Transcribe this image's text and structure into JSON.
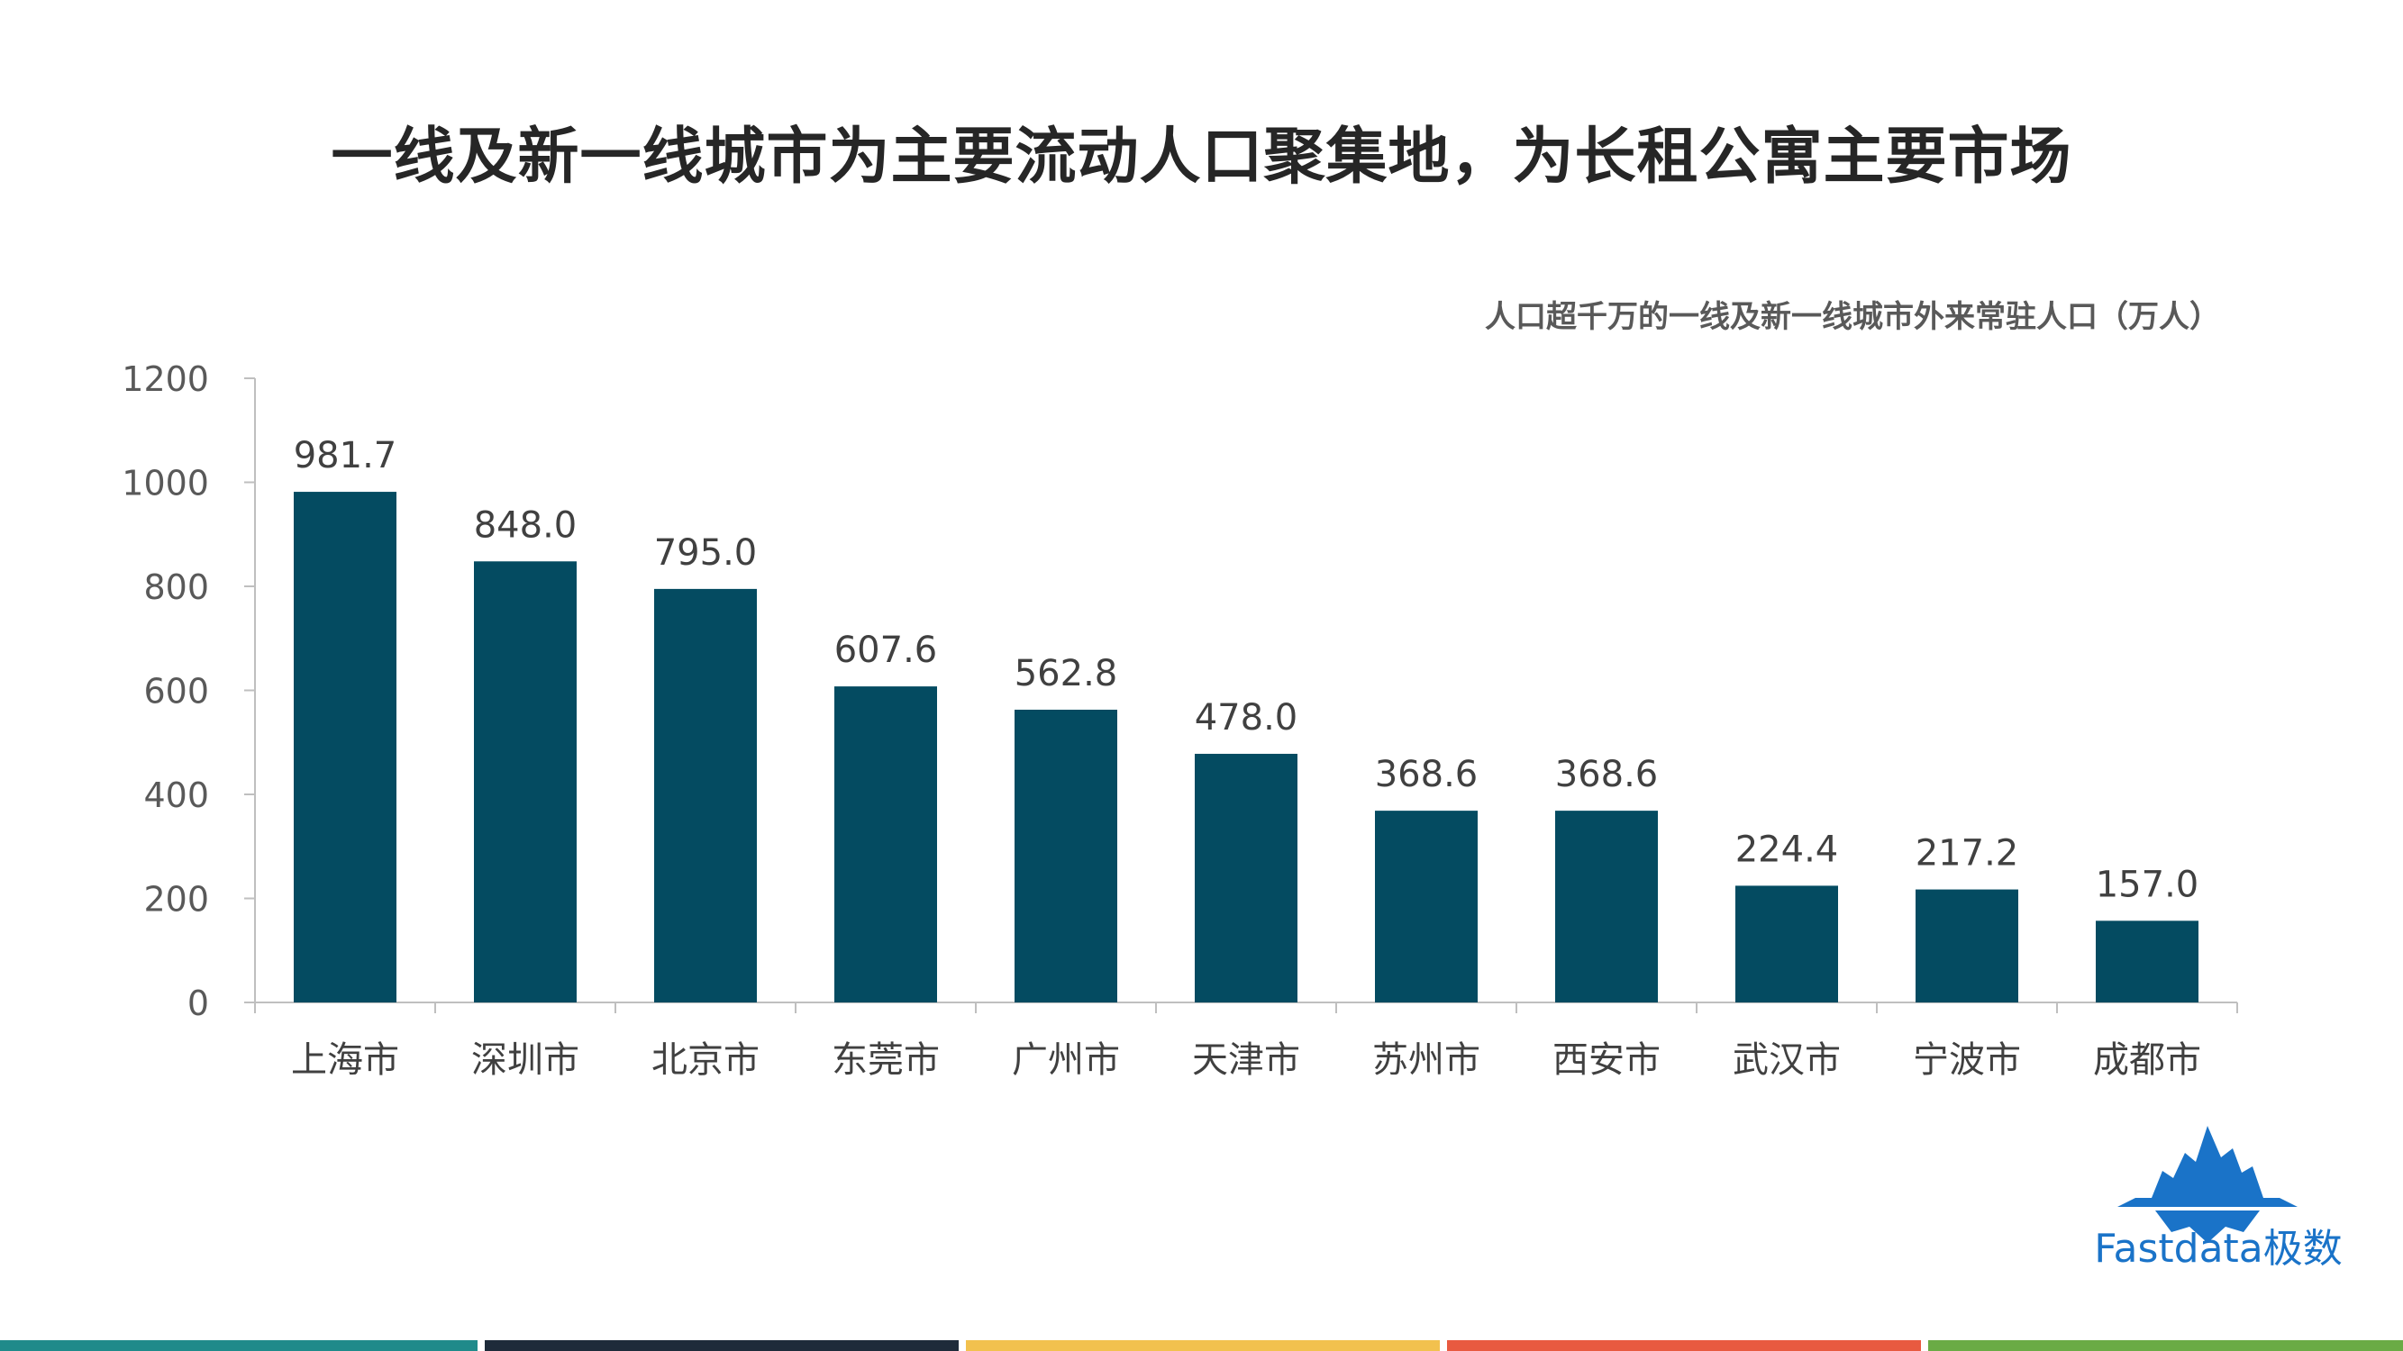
{
  "title": "一线及新一线城市为主要流动人口聚集地，为长租公寓主要市场",
  "logo_text": "Fastdata极数",
  "colors": {
    "bar": "#044b61",
    "axis": "#bfbfbf",
    "footer": [
      "#1f8a8a",
      "#1e2b3a",
      "#f2c14e",
      "#e85a40",
      "#6aab45"
    ]
  },
  "chart_data": {
    "type": "bar",
    "title": "人口超千万的一线及新一线城市外来常驻人口（万人）",
    "categories": [
      "上海市",
      "深圳市",
      "北京市",
      "东莞市",
      "广州市",
      "天津市",
      "苏州市",
      "西安市",
      "武汉市",
      "宁波市",
      "成都市"
    ],
    "values": [
      981.7,
      848.0,
      795.0,
      607.6,
      562.8,
      478.0,
      368.6,
      368.6,
      224.4,
      217.2,
      157.0
    ],
    "data_labels": [
      "981.7",
      "848.0",
      "795.0",
      "607.6",
      "562.8",
      "478.0",
      "368.6",
      "368.6",
      "224.4",
      "217.2",
      "157.0"
    ],
    "yticks": [
      0,
      200,
      400,
      600,
      800,
      1000,
      1200
    ],
    "ylim": [
      0,
      1200
    ],
    "xlabel": "",
    "ylabel": "",
    "grid": false,
    "legend": "none"
  }
}
